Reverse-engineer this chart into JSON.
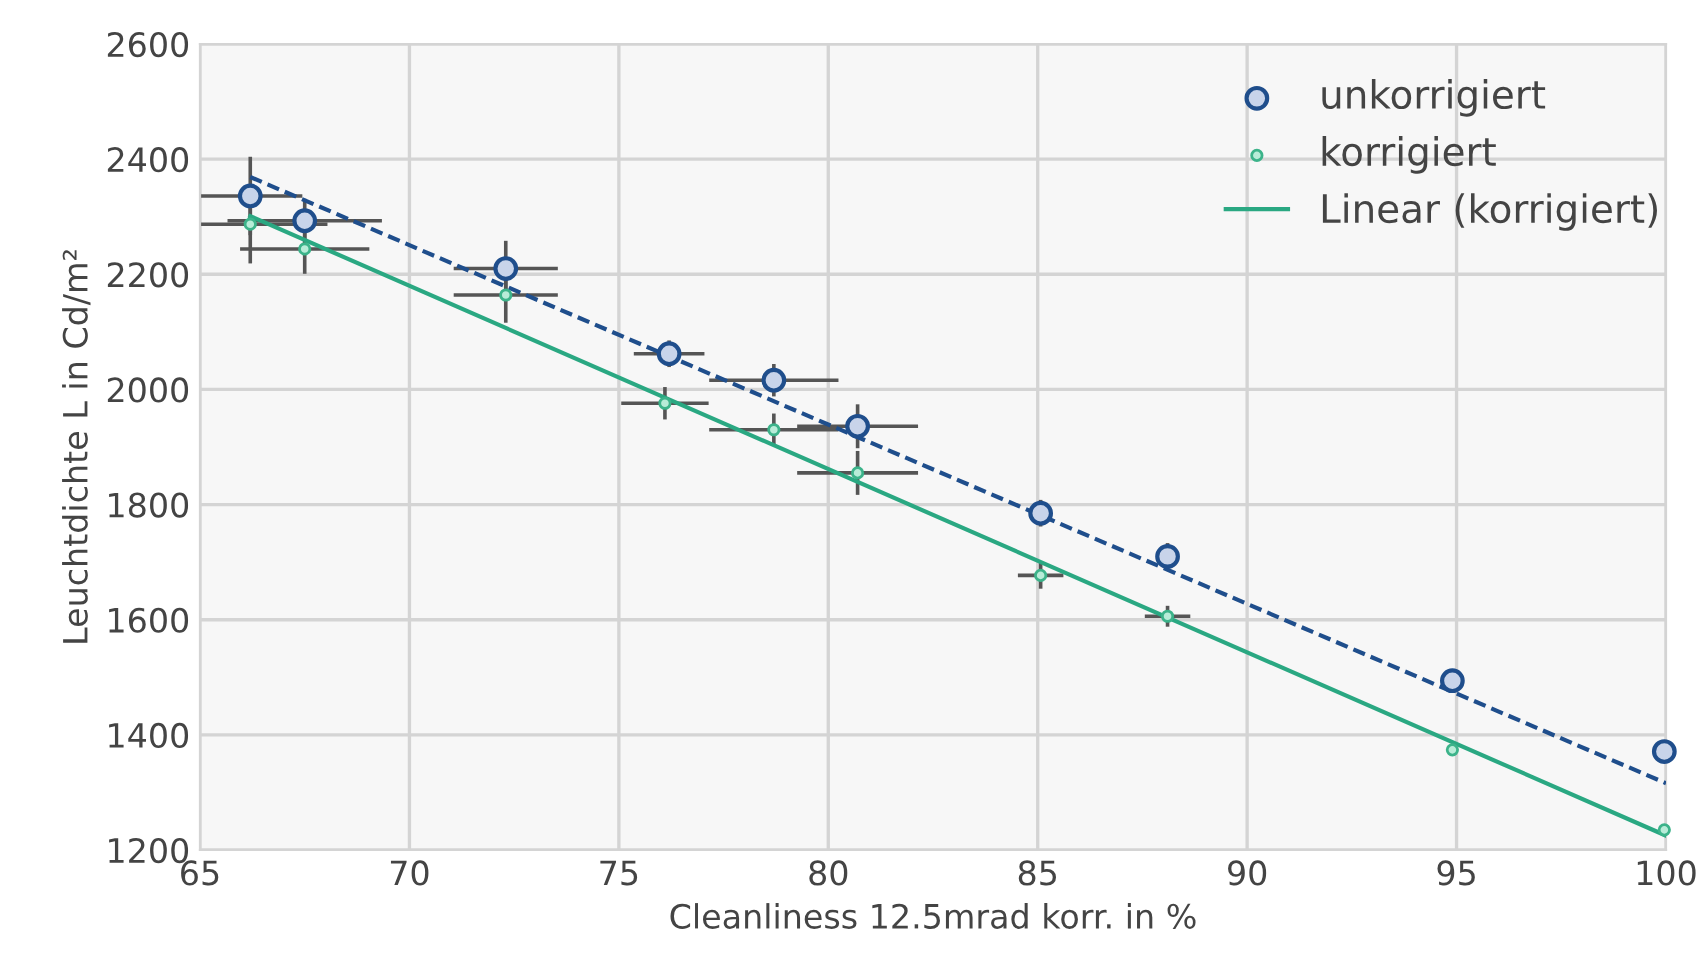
{
  "chart_data": {
    "type": "scatter",
    "xlabel": "Cleanliness 12.5mrad korr. in %",
    "ylabel": "Leuchtdichte L in Cd/m²",
    "xlim": [
      65,
      100
    ],
    "xticks": [
      65,
      70,
      75,
      80,
      85,
      90,
      95,
      100
    ],
    "ylim": [
      1200,
      2600
    ],
    "yticks": [
      1200,
      1400,
      1600,
      1800,
      2000,
      2200,
      2400,
      2600
    ],
    "grid": true,
    "legend": "top right",
    "marker": "circle",
    "series": [
      {
        "name": "unkorrigiert",
        "color": "#1f4e8c",
        "x": [
          66.2,
          67.5,
          72.3,
          76.2,
          78.7,
          80.7,
          85.07,
          88.1,
          94.9,
          99.96
        ],
        "values": [
          2336,
          2293,
          2210,
          2062,
          2016,
          1936,
          1785,
          1710,
          1494,
          1371
        ],
        "errors": [
          65,
          35,
          45,
          20,
          25,
          35,
          20,
          20,
          null,
          null
        ],
        "xerrors": [
          1.2,
          1.8,
          1.2,
          0.8,
          1.5,
          1.4,
          null,
          null,
          null,
          null
        ]
      },
      {
        "name": "korrigiert",
        "color": "#3cb38a",
        "x": [
          66.2,
          67.5,
          72.3,
          76.1,
          78.7,
          80.7,
          85.07,
          88.1,
          94.9,
          99.96
        ],
        "values": [
          2287,
          2244,
          2164,
          1976,
          1930,
          1855,
          1677,
          1606,
          1374,
          1235
        ],
        "errors": [
          65,
          40,
          45,
          25,
          25,
          35,
          20,
          15,
          null,
          null
        ],
        "xerrors": [
          1.8,
          1.5,
          1.2,
          1.0,
          1.5,
          1.4,
          0.5,
          0.5,
          null,
          null
        ]
      },
      {
        "type": "line",
        "color": "#1f4e8c",
        "line_style": "dashed",
        "marker": "none",
        "x": [
          66.2,
          100
        ],
        "values": [
          2369,
          1316
        ]
      },
      {
        "name": "Linear (korrigiert)",
        "type": "line",
        "color": "#2aa882",
        "line_style": "solid",
        "marker": "none",
        "x": [
          66.2,
          100
        ],
        "values": [
          2301,
          1225
        ]
      }
    ]
  }
}
